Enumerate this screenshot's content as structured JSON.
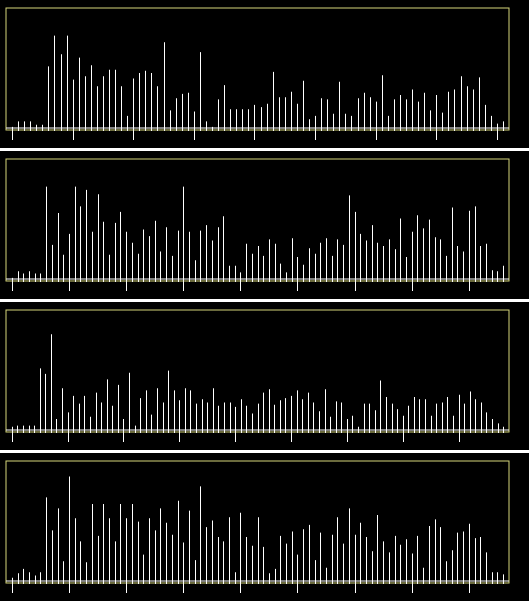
{
  "colors": {
    "background": "#000000",
    "frame": "#d6d67a",
    "stem": "#ffffff",
    "separator": "#ffffff",
    "axis": "#ffffff"
  },
  "chart_data": [
    {
      "type": "bar",
      "style": "stem",
      "xlabel": "",
      "ylabel": "",
      "title": "",
      "ylim": [
        0,
        1
      ],
      "grid": false,
      "legend": "none",
      "values": [
        0.01,
        0.06,
        0.06,
        0.06,
        0.03,
        0.03,
        0.56,
        0.84,
        0.67,
        0.84,
        0.44,
        0.64,
        0.47,
        0.57,
        0.38,
        0.47,
        0.53,
        0.53,
        0.38,
        0.11,
        0.45,
        0.5,
        0.52,
        0.5,
        0.38,
        0.78,
        0.16,
        0.27,
        0.31,
        0.32,
        0.15,
        0.69,
        0.06,
        0.01,
        0.26,
        0.39,
        0.17,
        0.17,
        0.17,
        0.17,
        0.21,
        0.19,
        0.22,
        0.51,
        0.28,
        0.28,
        0.33,
        0.22,
        0.43,
        0.08,
        0.11,
        0.27,
        0.26,
        0.13,
        0.42,
        0.13,
        0.11,
        0.27,
        0.32,
        0.28,
        0.24,
        0.48,
        0.11,
        0.26,
        0.3,
        0.26,
        0.35,
        0.24,
        0.32,
        0.16,
        0.3,
        0.14,
        0.33,
        0.35,
        0.47,
        0.38,
        0.35,
        0.46,
        0.21,
        0.11,
        0.04,
        0.06
      ]
    },
    {
      "type": "bar",
      "style": "stem",
      "xlabel": "",
      "ylabel": "",
      "title": "",
      "ylim": [
        0,
        1
      ],
      "grid": false,
      "legend": "none",
      "values": [
        0.01,
        0.07,
        0.05,
        0.07,
        0.05,
        0.05,
        0.84,
        0.31,
        0.6,
        0.22,
        0.41,
        0.84,
        0.66,
        0.81,
        0.43,
        0.77,
        0.52,
        0.22,
        0.51,
        0.61,
        0.43,
        0.33,
        0.23,
        0.45,
        0.39,
        0.53,
        0.25,
        0.47,
        0.21,
        0.44,
        0.84,
        0.43,
        0.17,
        0.44,
        0.49,
        0.35,
        0.47,
        0.57,
        0.12,
        0.12,
        0.06,
        0.32,
        0.23,
        0.3,
        0.21,
        0.36,
        0.32,
        0.14,
        0.06,
        0.37,
        0.2,
        0.13,
        0.28,
        0.23,
        0.33,
        0.37,
        0.21,
        0.36,
        0.31,
        0.76,
        0.61,
        0.41,
        0.35,
        0.49,
        0.33,
        0.3,
        0.36,
        0.27,
        0.55,
        0.2,
        0.43,
        0.58,
        0.46,
        0.54,
        0.38,
        0.36,
        0.21,
        0.65,
        0.3,
        0.25,
        0.62,
        0.66,
        0.3,
        0.32,
        0.08,
        0.07,
        0.12
      ]
    },
    {
      "type": "bar",
      "style": "stem",
      "xlabel": "",
      "ylabel": "",
      "title": "",
      "ylim": [
        0,
        1
      ],
      "grid": false,
      "legend": "none",
      "values": [
        0.03,
        0.04,
        0.04,
        0.04,
        0.04,
        0.56,
        0.51,
        0.87,
        0.1,
        0.38,
        0.16,
        0.31,
        0.24,
        0.31,
        0.12,
        0.34,
        0.25,
        0.46,
        0.22,
        0.41,
        0.1,
        0.52,
        0.04,
        0.29,
        0.36,
        0.14,
        0.38,
        0.25,
        0.54,
        0.36,
        0.27,
        0.38,
        0.36,
        0.24,
        0.28,
        0.25,
        0.38,
        0.22,
        0.25,
        0.25,
        0.21,
        0.28,
        0.22,
        0.15,
        0.24,
        0.34,
        0.37,
        0.23,
        0.27,
        0.29,
        0.31,
        0.36,
        0.28,
        0.34,
        0.25,
        0.17,
        0.37,
        0.12,
        0.26,
        0.25,
        0.1,
        0.13,
        0.03,
        0.24,
        0.24,
        0.18,
        0.45,
        0.3,
        0.24,
        0.19,
        0.13,
        0.22,
        0.3,
        0.28,
        0.28,
        0.13,
        0.24,
        0.25,
        0.3,
        0.13,
        0.32,
        0.24,
        0.35,
        0.28,
        0.25,
        0.16,
        0.1,
        0.06,
        0.03
      ]
    },
    {
      "type": "bar",
      "style": "stem",
      "xlabel": "",
      "ylabel": "",
      "title": "",
      "ylim": [
        0,
        1
      ],
      "grid": false,
      "legend": "none",
      "values": [
        0.03,
        0.07,
        0.11,
        0.08,
        0.05,
        0.08,
        0.76,
        0.46,
        0.66,
        0.18,
        0.95,
        0.57,
        0.36,
        0.17,
        0.7,
        0.41,
        0.7,
        0.57,
        0.36,
        0.7,
        0.57,
        0.7,
        0.54,
        0.24,
        0.57,
        0.46,
        0.66,
        0.53,
        0.42,
        0.73,
        0.35,
        0.64,
        0.19,
        0.86,
        0.49,
        0.55,
        0.4,
        0.36,
        0.58,
        0.08,
        0.62,
        0.4,
        0.32,
        0.58,
        0.31,
        0.07,
        0.11,
        0.41,
        0.34,
        0.45,
        0.24,
        0.47,
        0.51,
        0.19,
        0.44,
        0.12,
        0.42,
        0.58,
        0.34,
        0.66,
        0.42,
        0.53,
        0.4,
        0.27,
        0.6,
        0.36,
        0.26,
        0.41,
        0.33,
        0.38,
        0.25,
        0.41,
        0.12,
        0.5,
        0.56,
        0.49,
        0.18,
        0.28,
        0.44,
        0.45,
        0.52,
        0.39,
        0.4,
        0.26,
        0.08,
        0.08,
        0.06
      ]
    }
  ]
}
